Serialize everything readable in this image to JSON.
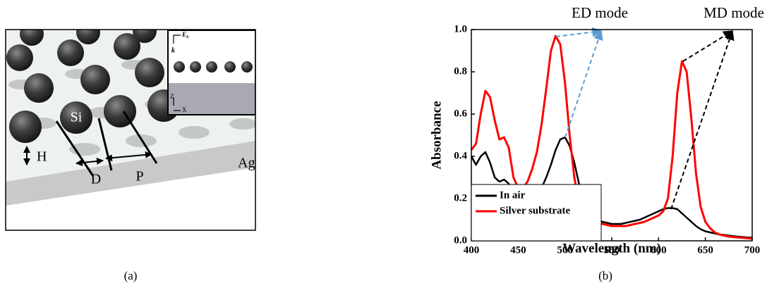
{
  "diagram": {
    "labels": {
      "si": "Si",
      "h": "H",
      "d": "D",
      "p": "P",
      "ag": "Ag",
      "ex": "E",
      "ex_sub": "x",
      "k": "k",
      "z": "Z",
      "x": "X"
    }
  },
  "captions": [
    "(a)",
    "(b)"
  ],
  "chart_data": {
    "type": "line",
    "xlabel": "Wavelength (nm)",
    "ylabel": "Absorbance",
    "annotations": [
      "ED mode",
      "MD mode"
    ],
    "x": [
      400,
      405,
      410,
      415,
      420,
      425,
      430,
      435,
      440,
      445,
      450,
      455,
      460,
      465,
      470,
      475,
      480,
      485,
      490,
      495,
      500,
      505,
      510,
      515,
      520,
      525,
      530,
      535,
      540,
      545,
      550,
      555,
      560,
      565,
      570,
      575,
      580,
      585,
      590,
      595,
      600,
      605,
      610,
      615,
      620,
      625,
      630,
      635,
      640,
      645,
      650,
      655,
      660,
      665,
      670,
      675,
      680,
      685,
      690,
      695,
      700
    ],
    "series": [
      {
        "name": "In air",
        "color": "#000000",
        "values": [
          0.4,
          0.36,
          0.4,
          0.42,
          0.37,
          0.3,
          0.28,
          0.29,
          0.27,
          0.22,
          0.18,
          0.16,
          0.16,
          0.18,
          0.21,
          0.25,
          0.3,
          0.36,
          0.43,
          0.48,
          0.49,
          0.45,
          0.37,
          0.27,
          0.19,
          0.14,
          0.11,
          0.1,
          0.09,
          0.085,
          0.08,
          0.08,
          0.08,
          0.085,
          0.09,
          0.095,
          0.1,
          0.11,
          0.12,
          0.13,
          0.14,
          0.15,
          0.155,
          0.155,
          0.15,
          0.13,
          0.11,
          0.09,
          0.07,
          0.055,
          0.045,
          0.04,
          0.035,
          0.03,
          0.028,
          0.025,
          0.022,
          0.02,
          0.018,
          0.016,
          0.015
        ]
      },
      {
        "name": "Silver substrate",
        "color": "#ff0000",
        "values": [
          0.43,
          0.46,
          0.6,
          0.71,
          0.68,
          0.57,
          0.48,
          0.49,
          0.44,
          0.3,
          0.25,
          0.25,
          0.28,
          0.34,
          0.42,
          0.55,
          0.72,
          0.9,
          0.97,
          0.93,
          0.75,
          0.5,
          0.3,
          0.18,
          0.12,
          0.1,
          0.09,
          0.085,
          0.08,
          0.075,
          0.07,
          0.07,
          0.07,
          0.07,
          0.075,
          0.08,
          0.085,
          0.09,
          0.1,
          0.11,
          0.12,
          0.14,
          0.2,
          0.4,
          0.7,
          0.85,
          0.8,
          0.58,
          0.32,
          0.16,
          0.09,
          0.06,
          0.04,
          0.03,
          0.025,
          0.02,
          0.018,
          0.016,
          0.014,
          0.012,
          0.01
        ]
      }
    ],
    "xlim": [
      400,
      700
    ],
    "xticks": [
      400,
      450,
      500,
      550,
      600,
      650,
      700
    ],
    "ylim": [
      0,
      1
    ],
    "yticks": [
      {
        "value": 0,
        "label": "0.0"
      },
      0.2,
      0.4,
      0.6,
      0.8,
      {
        "value": 1,
        "label": "1.0"
      }
    ],
    "legend": "lower left",
    "grid": false
  }
}
